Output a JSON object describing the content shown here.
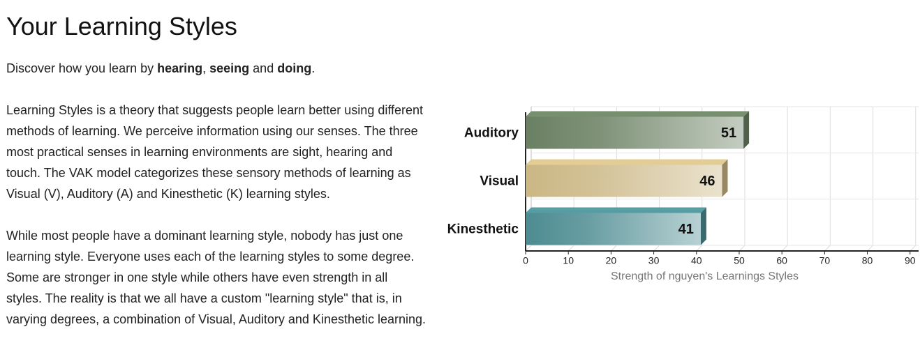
{
  "header": {
    "title": "Your Learning Styles"
  },
  "intro": [
    "Discover how you learn by ",
    "hearing",
    ", ",
    "seeing",
    " and ",
    "doing",
    "."
  ],
  "paragraphs": [
    "Learning Styles is a theory that suggests people learn better using different methods of learning. We perceive information using our senses. The three most practical senses in learning environments are sight, hearing and touch. The VAK model categorizes these sensory methods of learning as Visual (V), Auditory (A) and Kinesthetic (K) learning styles.",
    "While most people have a dominant learning style, nobody has just one learning style. Everyone uses each of the learning styles to some degree. Some are stronger in one style while others have even strength in all styles. The reality is that we all have a custom \"learning style\" that is, in varying degrees, a combination of Visual, Auditory and Kinesthetic learning."
  ],
  "chart_data": {
    "type": "bar",
    "orientation": "horizontal",
    "categories": [
      "Auditory",
      "Visual",
      "Kinesthetic"
    ],
    "values": [
      51,
      46,
      41
    ],
    "colors": [
      "#6a8062",
      "#cbb784",
      "#4d8c92"
    ],
    "xlabel": "Strength of nguyen's Learnings Styles",
    "xlim": [
      0,
      92
    ],
    "xticks": [
      0,
      10,
      20,
      30,
      40,
      50,
      60,
      70,
      80,
      90
    ],
    "grid": true
  }
}
